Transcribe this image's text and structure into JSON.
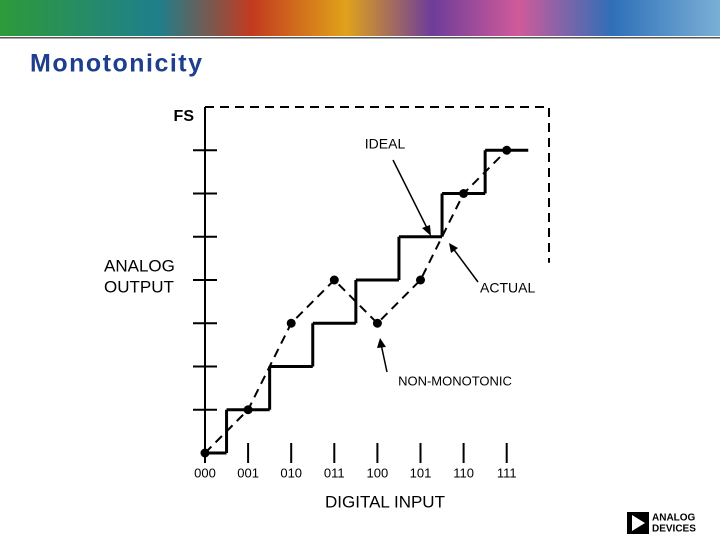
{
  "chart_data": {
    "type": "line",
    "title": "Monotonicity",
    "x_label": "DIGITAL INPUT",
    "y_label": [
      "ANALOG",
      "OUTPUT"
    ],
    "categories": [
      "000",
      "001",
      "010",
      "011",
      "100",
      "101",
      "110",
      "111"
    ],
    "series": [
      {
        "name": "IDEAL",
        "color": "#000000",
        "values": [
          0,
          1,
          2,
          3,
          4,
          5,
          6,
          7
        ]
      },
      {
        "name": "ACTUAL",
        "color": "#000000",
        "values": [
          0,
          1,
          3,
          4,
          3,
          4,
          6,
          7
        ]
      }
    ],
    "annotations": [
      "NON-MONOTONIC"
    ],
    "ylim": [
      0,
      8
    ],
    "yticks": [
      1,
      2,
      3,
      4,
      5,
      6,
      7,
      {
        "value": 8,
        "label": "FS"
      }
    ]
  },
  "logo": [
    "ANALOG",
    "DEVICES"
  ]
}
